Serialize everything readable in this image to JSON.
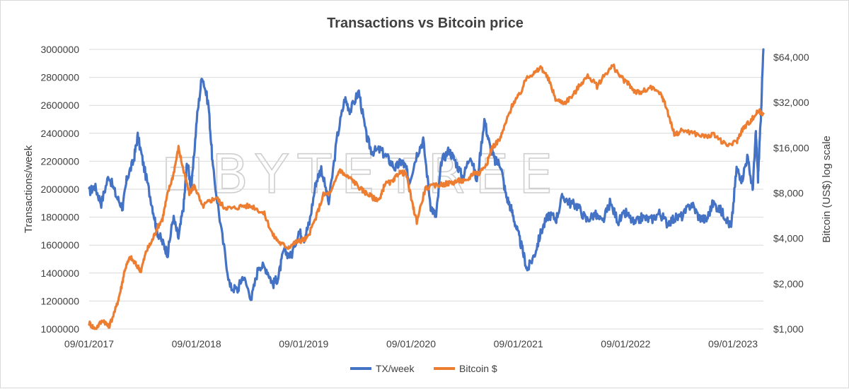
{
  "chart_data": {
    "type": "line",
    "title": "Transactions vs Bitcoin price",
    "xlabel": "",
    "ylabel": "Transactions/week",
    "y2label": "Bitcoin (US$) log scale",
    "x_ticks": [
      "09/01/2017",
      "09/01/2018",
      "09/01/2019",
      "09/01/2020",
      "09/01/2021",
      "09/01/2022",
      "09/01/2023"
    ],
    "x_range": [
      2017.667,
      2023.95
    ],
    "ylim": [
      1000000,
      3000000
    ],
    "y_ticks": [
      1000000,
      1200000,
      1400000,
      1600000,
      1800000,
      2000000,
      2200000,
      2400000,
      2600000,
      2800000,
      3000000
    ],
    "y_tick_labels": [
      "1000000",
      "1200000",
      "1400000",
      "1600000",
      "1800000",
      "2000000",
      "2200000",
      "2400000",
      "2600000",
      "2800000",
      "3000000"
    ],
    "y2lim": [
      1000,
      72000
    ],
    "y2_scale": "log",
    "y2_ticks": [
      1000,
      2000,
      4000,
      8000,
      16000,
      32000,
      64000
    ],
    "y2_tick_labels": [
      "$1,000",
      "$2,000",
      "$4,000",
      "$8,000",
      "$16,000",
      "$32,000",
      "$64,000"
    ],
    "grid": true,
    "legend_position": "bottom",
    "series": [
      {
        "name": "TX/week",
        "axis": "left",
        "color": "#4472c4",
        "x": [
          2017.667,
          2017.72,
          2017.78,
          2017.85,
          2017.92,
          2017.98,
          2018.02,
          2018.08,
          2018.12,
          2018.18,
          2018.25,
          2018.3,
          2018.35,
          2018.4,
          2018.45,
          2018.5,
          2018.55,
          2018.58,
          2018.62,
          2018.67,
          2018.72,
          2018.78,
          2018.82,
          2018.9,
          2018.98,
          2019.05,
          2019.1,
          2019.18,
          2019.25,
          2019.32,
          2019.38,
          2019.43,
          2019.48,
          2019.55,
          2019.62,
          2019.67,
          2019.72,
          2019.78,
          2019.83,
          2019.9,
          2019.98,
          2020.05,
          2020.1,
          2020.18,
          2020.25,
          2020.3,
          2020.38,
          2020.45,
          2020.52,
          2020.58,
          2020.62,
          2020.65,
          2020.72,
          2020.78,
          2020.85,
          2020.9,
          2020.95,
          2021.02,
          2021.08,
          2021.15,
          2021.22,
          2021.28,
          2021.35,
          2021.4,
          2021.45,
          2021.5,
          2021.55,
          2021.6,
          2021.65,
          2021.7,
          2021.75,
          2021.82,
          2021.88,
          2021.95,
          2022.02,
          2022.08,
          2022.15,
          2022.22,
          2022.3,
          2022.38,
          2022.45,
          2022.52,
          2022.6,
          2022.67,
          2022.75,
          2022.82,
          2022.9,
          2022.98,
          2023.05,
          2023.12,
          2023.2,
          2023.28,
          2023.35,
          2023.42,
          2023.48,
          2023.55,
          2023.6,
          2023.65,
          2023.7,
          2023.75,
          2023.8,
          2023.85,
          2023.88,
          2023.9,
          2023.92,
          2023.95
        ],
        "values": [
          1980000,
          2020000,
          1900000,
          2100000,
          1950000,
          1870000,
          2080000,
          2200000,
          2380000,
          2150000,
          1900000,
          1700000,
          1620000,
          1540000,
          1800000,
          1650000,
          1900000,
          2200000,
          2000000,
          2500000,
          2820000,
          2600000,
          2150000,
          1700000,
          1300000,
          1280000,
          1380000,
          1220000,
          1460000,
          1430000,
          1320000,
          1370000,
          1560000,
          1520000,
          1700000,
          1650000,
          1760000,
          2050000,
          2150000,
          1900000,
          2380000,
          2650000,
          2560000,
          2700000,
          2380000,
          2270000,
          2280000,
          2220000,
          2150000,
          2200000,
          2150000,
          2050000,
          2250000,
          2350000,
          1880000,
          1800000,
          2200000,
          2280000,
          2200000,
          2080000,
          2250000,
          2050000,
          2500000,
          2310000,
          2200000,
          2180000,
          1960000,
          1860000,
          1720000,
          1580000,
          1420000,
          1540000,
          1700000,
          1820000,
          1790000,
          1950000,
          1900000,
          1880000,
          1780000,
          1820000,
          1760000,
          1900000,
          1770000,
          1830000,
          1750000,
          1800000,
          1780000,
          1830000,
          1760000,
          1790000,
          1810000,
          1900000,
          1800000,
          1780000,
          1900000,
          1850000,
          1800000,
          1720000,
          2150000,
          2070000,
          2230000,
          2000000,
          2400000,
          2080000,
          2400000,
          3000000
        ]
      },
      {
        "name": "Bitcoin $",
        "axis": "right",
        "color": "#ed7d31",
        "x": [
          2017.667,
          2017.72,
          2017.8,
          2017.85,
          2017.92,
          2017.96,
          2018.0,
          2018.05,
          2018.1,
          2018.15,
          2018.2,
          2018.25,
          2018.3,
          2018.35,
          2018.4,
          2018.45,
          2018.5,
          2018.55,
          2018.6,
          2018.65,
          2018.72,
          2018.78,
          2018.85,
          2018.92,
          2019.0,
          2019.1,
          2019.2,
          2019.3,
          2019.38,
          2019.45,
          2019.52,
          2019.6,
          2019.65,
          2019.7,
          2019.78,
          2019.85,
          2019.92,
          2020.0,
          2020.05,
          2020.12,
          2020.2,
          2020.25,
          2020.32,
          2020.38,
          2020.42,
          2020.5,
          2020.55,
          2020.62,
          2020.68,
          2020.72,
          2020.8,
          2020.9,
          2020.98,
          2021.05,
          2021.12,
          2021.18,
          2021.25,
          2021.3,
          2021.38,
          2021.42,
          2021.5,
          2021.55,
          2021.62,
          2021.68,
          2021.75,
          2021.82,
          2021.88,
          2021.95,
          2022.02,
          2022.1,
          2022.18,
          2022.25,
          2022.32,
          2022.4,
          2022.48,
          2022.55,
          2022.62,
          2022.7,
          2022.75,
          2022.8,
          2022.9,
          2023.0,
          2023.05,
          2023.12,
          2023.2,
          2023.3,
          2023.4,
          2023.5,
          2023.6,
          2023.7,
          2023.75,
          2023.8,
          2023.85,
          2023.9,
          2023.95
        ],
        "values": [
          1100,
          1000,
          1150,
          1030,
          1400,
          1800,
          2500,
          3000,
          2700,
          2450,
          3300,
          3800,
          4700,
          5400,
          8000,
          10500,
          16000,
          11000,
          8000,
          9000,
          6500,
          7000,
          7500,
          6500,
          6300,
          6600,
          6500,
          5800,
          4200,
          3700,
          3500,
          3800,
          3900,
          4000,
          5500,
          7800,
          8000,
          11500,
          10500,
          9800,
          8500,
          8000,
          7400,
          7300,
          9200,
          9500,
          11000,
          10800,
          6700,
          5200,
          8600,
          9000,
          9200,
          9400,
          9700,
          9500,
          11000,
          10800,
          13000,
          16000,
          18500,
          23500,
          32000,
          36000,
          48000,
          50000,
          55000,
          45000,
          33000,
          32000,
          36000,
          43000,
          48000,
          41000,
          50000,
          56000,
          47000,
          42000,
          38000,
          37000,
          40000,
          36000,
          29000,
          19600,
          21000,
          20000,
          19000,
          19500,
          16500,
          17500,
          21000,
          23000,
          25000,
          28000,
          27000
        ]
      }
    ]
  },
  "watermark": "BYTETREE"
}
